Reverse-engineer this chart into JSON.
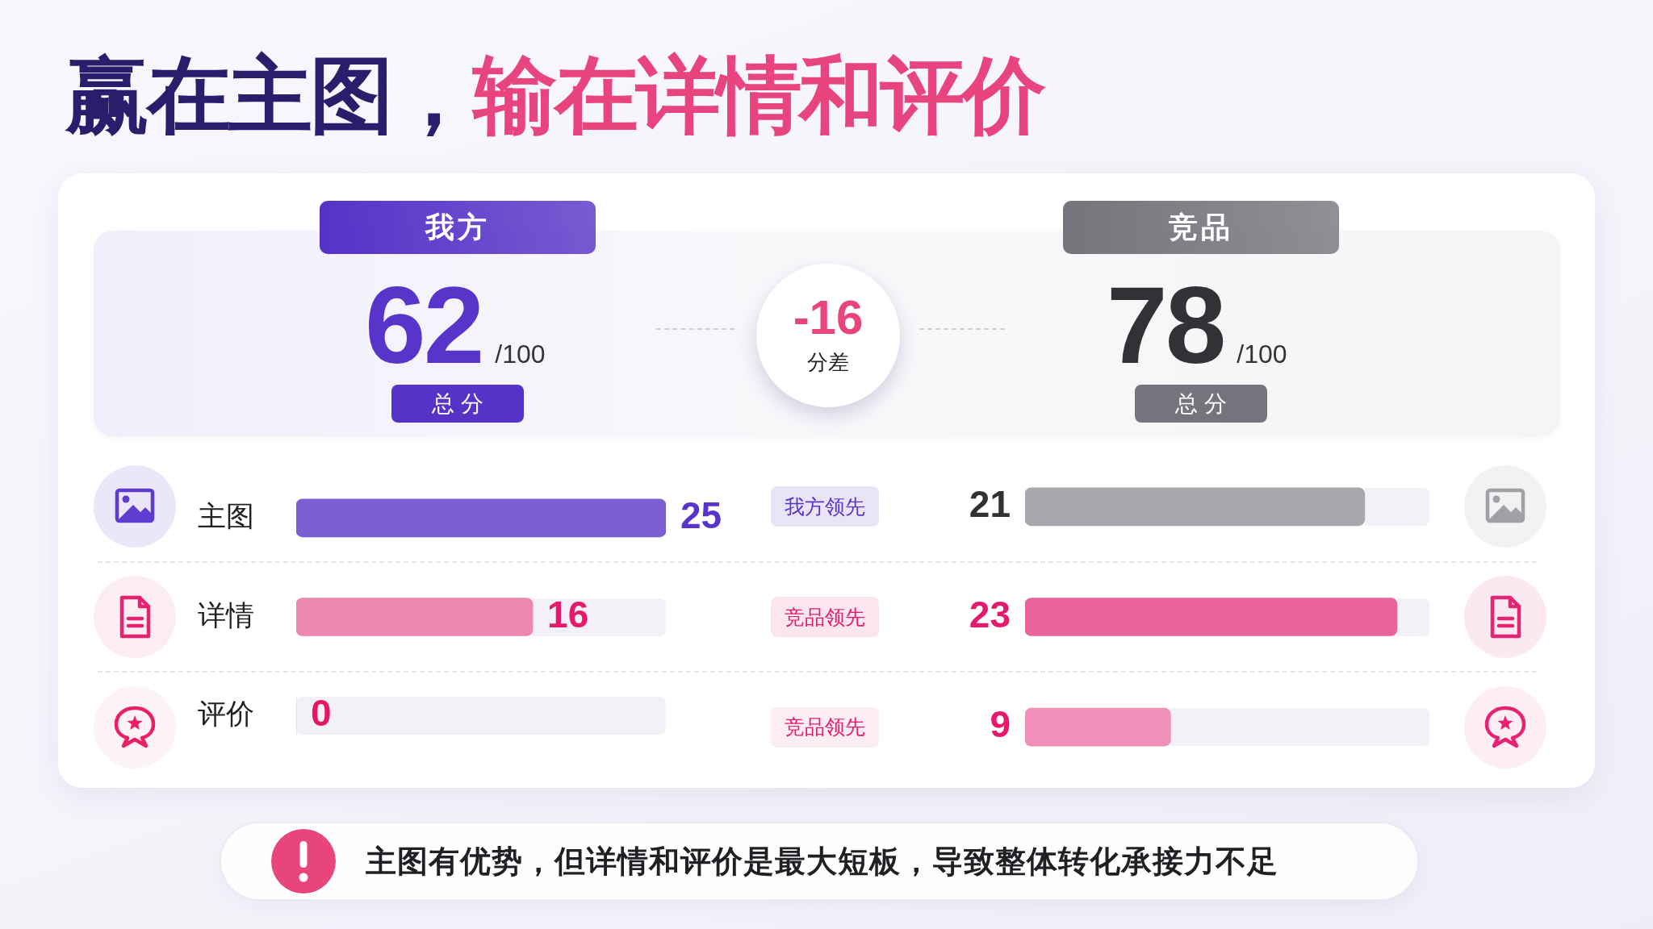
{
  "chart_data": [
    {
      "type": "bar",
      "title": "赢在主图，输在详情和评价",
      "orientation": "horizontal",
      "categories": [
        "主图",
        "详情",
        "评价"
      ],
      "series": [
        {
          "name": "我方",
          "colors": [
            "#7a5fd0",
            "#ee87b0",
            "#f4a6c2"
          ],
          "values": [
            25,
            16,
            0
          ]
        }
      ],
      "data_labels": true,
      "tick_labels": "y",
      "annotations": [
        "62",
        "/100",
        "总分",
        "-16",
        "分差",
        "我方领先",
        "竞品领先",
        "竞品领先",
        "主图有优势，但详情和评价是最大短板，导致整体转化承接力不足"
      ]
    },
    {
      "type": "bar",
      "orientation": "horizontal",
      "categories": [
        null,
        null,
        null
      ],
      "series": [
        {
          "name": "竞品",
          "colors": [
            "#a7a8ad",
            "#e8639a",
            "#f08fb7"
          ],
          "values": [
            21,
            23,
            9
          ]
        }
      ],
      "data_labels": true,
      "tick_labels": false,
      "annotations": [
        "78",
        "/100",
        "总分"
      ]
    }
  ]
}
